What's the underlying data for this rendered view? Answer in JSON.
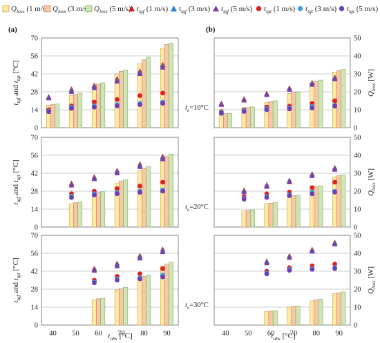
{
  "colors": {
    "q1": "#ffe9a3",
    "q1_edge": "#c4a24a",
    "q3": "#f7c7a8",
    "q3_edge": "#c0835e",
    "q5": "#cde6b4",
    "q5_edge": "#86a96d",
    "tf1": "#c81e1e",
    "tf3": "#2b7fd6",
    "tf5": "#7a3fa8",
    "tg1": "#e02020",
    "tg3": "#33a6e0",
    "tg5": "#6a3fb8",
    "grid": "#bdbdbd",
    "frame": "#7a7a7a"
  },
  "legend": {
    "items": [
      {
        "id": "q1",
        "marker": "square",
        "label": "Q_loss (1 m/s)"
      },
      {
        "id": "q3",
        "marker": "square",
        "label": "Q_loss (3 m/s)"
      },
      {
        "id": "q5",
        "marker": "square",
        "label": "Q_loss (5 m/s)"
      },
      {
        "id": "tf1",
        "marker": "triangle",
        "label": "t_tgf (1 m/s)"
      },
      {
        "id": "tf3",
        "marker": "triangle",
        "label": "t_tgf (3 m/s)"
      },
      {
        "id": "tf5",
        "marker": "triangle",
        "label": "t_tgf (5 m/s)"
      },
      {
        "id": "tg1",
        "marker": "circle",
        "label": "t_tgt (1 m/s)"
      },
      {
        "id": "tg3",
        "marker": "circle",
        "label": "t_tgt (3 m/s)"
      },
      {
        "id": "tg5",
        "marker": "circle",
        "label": "t_tgt (5 m/s)"
      }
    ]
  },
  "labels": {
    "panel_a": "(a)",
    "panel_b": "(b)",
    "ylabel_left": "t_tgf and t_tgt [°C]",
    "ylabel_right": "Q_loss [W]",
    "xlabel": "t_obs [°C]"
  },
  "chart_data": [
    {
      "type": "bar",
      "panel": "a",
      "row": 1,
      "annotation": "t_e=10°C",
      "categories": [
        "40",
        "50",
        "60",
        "70",
        "80",
        "90"
      ],
      "ylim": [
        0,
        70
      ],
      "yticks": [
        0,
        14,
        28,
        42,
        56,
        70
      ],
      "bar_series": [
        {
          "id": "q1",
          "values": [
            17.5,
            25,
            32,
            42,
            50,
            62
          ]
        },
        {
          "id": "q3",
          "values": [
            18,
            26,
            34,
            44,
            53,
            65
          ]
        },
        {
          "id": "q5",
          "values": [
            18.5,
            27,
            35,
            45,
            55,
            66
          ]
        }
      ],
      "point_series": [
        {
          "id": "tf1",
          "marker": "triangle",
          "values": [
            24,
            30,
            33,
            38,
            44,
            49
          ]
        },
        {
          "id": "tf3",
          "marker": "triangle",
          "values": [
            23.5,
            29,
            32,
            37,
            43,
            48
          ]
        },
        {
          "id": "tf5",
          "marker": "triangle",
          "values": [
            23,
            28,
            31,
            36,
            42,
            47
          ]
        },
        {
          "id": "tg1",
          "marker": "circle",
          "values": [
            14,
            17,
            20,
            22,
            25,
            27
          ]
        },
        {
          "id": "tg3",
          "marker": "circle",
          "values": [
            13,
            16,
            17,
            18,
            19,
            20
          ]
        },
        {
          "id": "tg5",
          "marker": "circle",
          "values": [
            12.5,
            15,
            16,
            17,
            18,
            19
          ]
        }
      ]
    },
    {
      "type": "bar",
      "panel": "b",
      "row": 1,
      "categories": [
        "40",
        "50",
        "60",
        "70",
        "80",
        "90"
      ],
      "ylim": [
        0,
        50
      ],
      "yticks": [
        0,
        10,
        20,
        30,
        40,
        50
      ],
      "bar_series": [
        {
          "id": "q1",
          "values": [
            7.5,
            11,
            14,
            19,
            25,
            31
          ]
        },
        {
          "id": "q3",
          "values": [
            7.8,
            11.3,
            14.5,
            19.6,
            25.8,
            32
          ]
        },
        {
          "id": "q5",
          "values": [
            8,
            11.6,
            15,
            20,
            26.5,
            32.5
          ]
        }
      ],
      "point_series": [
        {
          "id": "tf1",
          "marker": "triangle",
          "values": [
            13.5,
            16,
            19,
            22,
            25,
            28
          ]
        },
        {
          "id": "tf3",
          "marker": "triangle",
          "values": [
            13,
            15.5,
            18.5,
            21.5,
            24.5,
            27.5
          ]
        },
        {
          "id": "tf5",
          "marker": "triangle",
          "values": [
            12.8,
            15.2,
            18.2,
            21.2,
            24,
            27
          ]
        },
        {
          "id": "tg1",
          "marker": "circle",
          "values": [
            9,
            10,
            11.5,
            12,
            13.5,
            15
          ]
        },
        {
          "id": "tg3",
          "marker": "circle",
          "values": [
            8.5,
            9.5,
            10.5,
            11,
            11.8,
            12.5
          ]
        },
        {
          "id": "tg5",
          "marker": "circle",
          "values": [
            8,
            9,
            10,
            10.5,
            11,
            12
          ]
        }
      ]
    },
    {
      "type": "bar",
      "panel": "a",
      "row": 2,
      "annotation": "t_e=20°C",
      "categories": [
        "40",
        "50",
        "60",
        "70",
        "80",
        "90"
      ],
      "ylim": [
        0,
        70
      ],
      "yticks": [
        0,
        14,
        28,
        42,
        56,
        70
      ],
      "bar_series": [
        {
          "id": "q1",
          "values": [
            0,
            18,
            26,
            34,
            44,
            53
          ]
        },
        {
          "id": "q3",
          "values": [
            0,
            19,
            27,
            36,
            46,
            55
          ]
        },
        {
          "id": "q5",
          "values": [
            0,
            19.5,
            27.5,
            37,
            47,
            57
          ]
        }
      ],
      "point_series": [
        {
          "id": "tf1",
          "marker": "triangle",
          "values": [
            null,
            34,
            39,
            44,
            49,
            55
          ]
        },
        {
          "id": "tf3",
          "marker": "triangle",
          "values": [
            null,
            33,
            38,
            43,
            48,
            54
          ]
        },
        {
          "id": "tf5",
          "marker": "triangle",
          "values": [
            null,
            32.5,
            37.5,
            42,
            47,
            53
          ]
        },
        {
          "id": "tg1",
          "marker": "circle",
          "values": [
            null,
            26,
            28,
            30,
            32,
            35
          ]
        },
        {
          "id": "tg3",
          "marker": "circle",
          "values": [
            null,
            24,
            26,
            27,
            28,
            29
          ]
        },
        {
          "id": "tg5",
          "marker": "circle",
          "values": [
            null,
            23,
            25,
            26,
            27,
            28
          ]
        }
      ]
    },
    {
      "type": "bar",
      "panel": "b",
      "row": 2,
      "categories": [
        "40",
        "50",
        "60",
        "70",
        "80",
        "90"
      ],
      "ylim": [
        0,
        50
      ],
      "yticks": [
        0,
        10,
        20,
        30,
        40,
        50
      ],
      "bar_series": [
        {
          "id": "q1",
          "values": [
            0,
            9,
            13,
            17,
            22,
            28
          ]
        },
        {
          "id": "q3",
          "values": [
            0,
            9.3,
            13.3,
            17.4,
            22.5,
            28.6
          ]
        },
        {
          "id": "q5",
          "values": [
            0,
            9.6,
            13.6,
            17.8,
            23,
            29
          ]
        }
      ],
      "point_series": [
        {
          "id": "tf1",
          "marker": "triangle",
          "values": [
            null,
            20.5,
            23.5,
            26,
            29.5,
            33
          ]
        },
        {
          "id": "tf3",
          "marker": "triangle",
          "values": [
            null,
            20,
            23,
            25.5,
            29,
            32.5
          ]
        },
        {
          "id": "tf5",
          "marker": "triangle",
          "values": [
            null,
            19.5,
            22.5,
            25,
            28.5,
            32
          ]
        },
        {
          "id": "tg1",
          "marker": "circle",
          "values": [
            null,
            17,
            18.5,
            19.5,
            22,
            25
          ]
        },
        {
          "id": "tg3",
          "marker": "circle",
          "values": [
            null,
            16,
            17,
            18,
            19.5,
            20
          ]
        },
        {
          "id": "tg5",
          "marker": "circle",
          "values": [
            null,
            15.5,
            16.5,
            17.5,
            18.5,
            19.5
          ]
        }
      ]
    },
    {
      "type": "bar",
      "panel": "a",
      "row": 3,
      "annotation": "t_e=30°C",
      "categories": [
        "40",
        "50",
        "60",
        "70",
        "80",
        "90"
      ],
      "ylim": [
        0,
        70
      ],
      "yticks": [
        0,
        14,
        28,
        42,
        56,
        70
      ],
      "bar_series": [
        {
          "id": "q1",
          "values": [
            0,
            0,
            19.5,
            27.5,
            36,
            46
          ]
        },
        {
          "id": "q3",
          "values": [
            0,
            0,
            20.5,
            28.5,
            38,
            47.5
          ]
        },
        {
          "id": "q5",
          "values": [
            0,
            0,
            21,
            29.5,
            39,
            49
          ]
        }
      ],
      "point_series": [
        {
          "id": "tf1",
          "marker": "triangle",
          "values": [
            null,
            null,
            44,
            48,
            54,
            59
          ]
        },
        {
          "id": "tf3",
          "marker": "triangle",
          "values": [
            null,
            null,
            43,
            47,
            53,
            58
          ]
        },
        {
          "id": "tf5",
          "marker": "triangle",
          "values": [
            null,
            null,
            42.5,
            46,
            52,
            57
          ]
        },
        {
          "id": "tg1",
          "marker": "circle",
          "values": [
            null,
            null,
            35,
            38,
            40,
            44
          ]
        },
        {
          "id": "tg3",
          "marker": "circle",
          "values": [
            null,
            null,
            33.5,
            36,
            37,
            39
          ]
        },
        {
          "id": "tg5",
          "marker": "circle",
          "values": [
            null,
            null,
            33,
            35,
            36,
            37.5
          ]
        }
      ]
    },
    {
      "type": "bar",
      "panel": "b",
      "row": 3,
      "categories": [
        "40",
        "50",
        "60",
        "70",
        "80",
        "90"
      ],
      "ylim": [
        0,
        50
      ],
      "yticks": [
        0,
        10,
        20,
        30,
        40,
        50
      ],
      "bar_series": [
        {
          "id": "q1",
          "values": [
            0,
            0,
            7.5,
            10,
            13.5,
            17.5
          ]
        },
        {
          "id": "q3",
          "values": [
            0,
            0,
            7.8,
            10.3,
            14,
            18
          ]
        },
        {
          "id": "q5",
          "values": [
            0,
            0,
            8,
            10.6,
            14.5,
            18.5
          ]
        }
      ],
      "point_series": [
        {
          "id": "tf1",
          "marker": "triangle",
          "values": [
            null,
            null,
            35.5,
            38.5,
            42,
            46
          ]
        },
        {
          "id": "tf3",
          "marker": "triangle",
          "values": [
            null,
            null,
            35,
            38,
            41.5,
            45.5
          ]
        },
        {
          "id": "tf5",
          "marker": "triangle",
          "values": [
            null,
            null,
            34.5,
            37.5,
            41,
            45
          ]
        },
        {
          "id": "tg1",
          "marker": "circle",
          "values": [
            null,
            null,
            30,
            32,
            33,
            34
          ]
        },
        {
          "id": "tg3",
          "marker": "circle",
          "values": [
            null,
            null,
            29,
            31,
            31.5,
            32
          ]
        },
        {
          "id": "tg5",
          "marker": "circle",
          "values": [
            null,
            null,
            28.5,
            30.5,
            31,
            31.5
          ]
        }
      ]
    }
  ]
}
